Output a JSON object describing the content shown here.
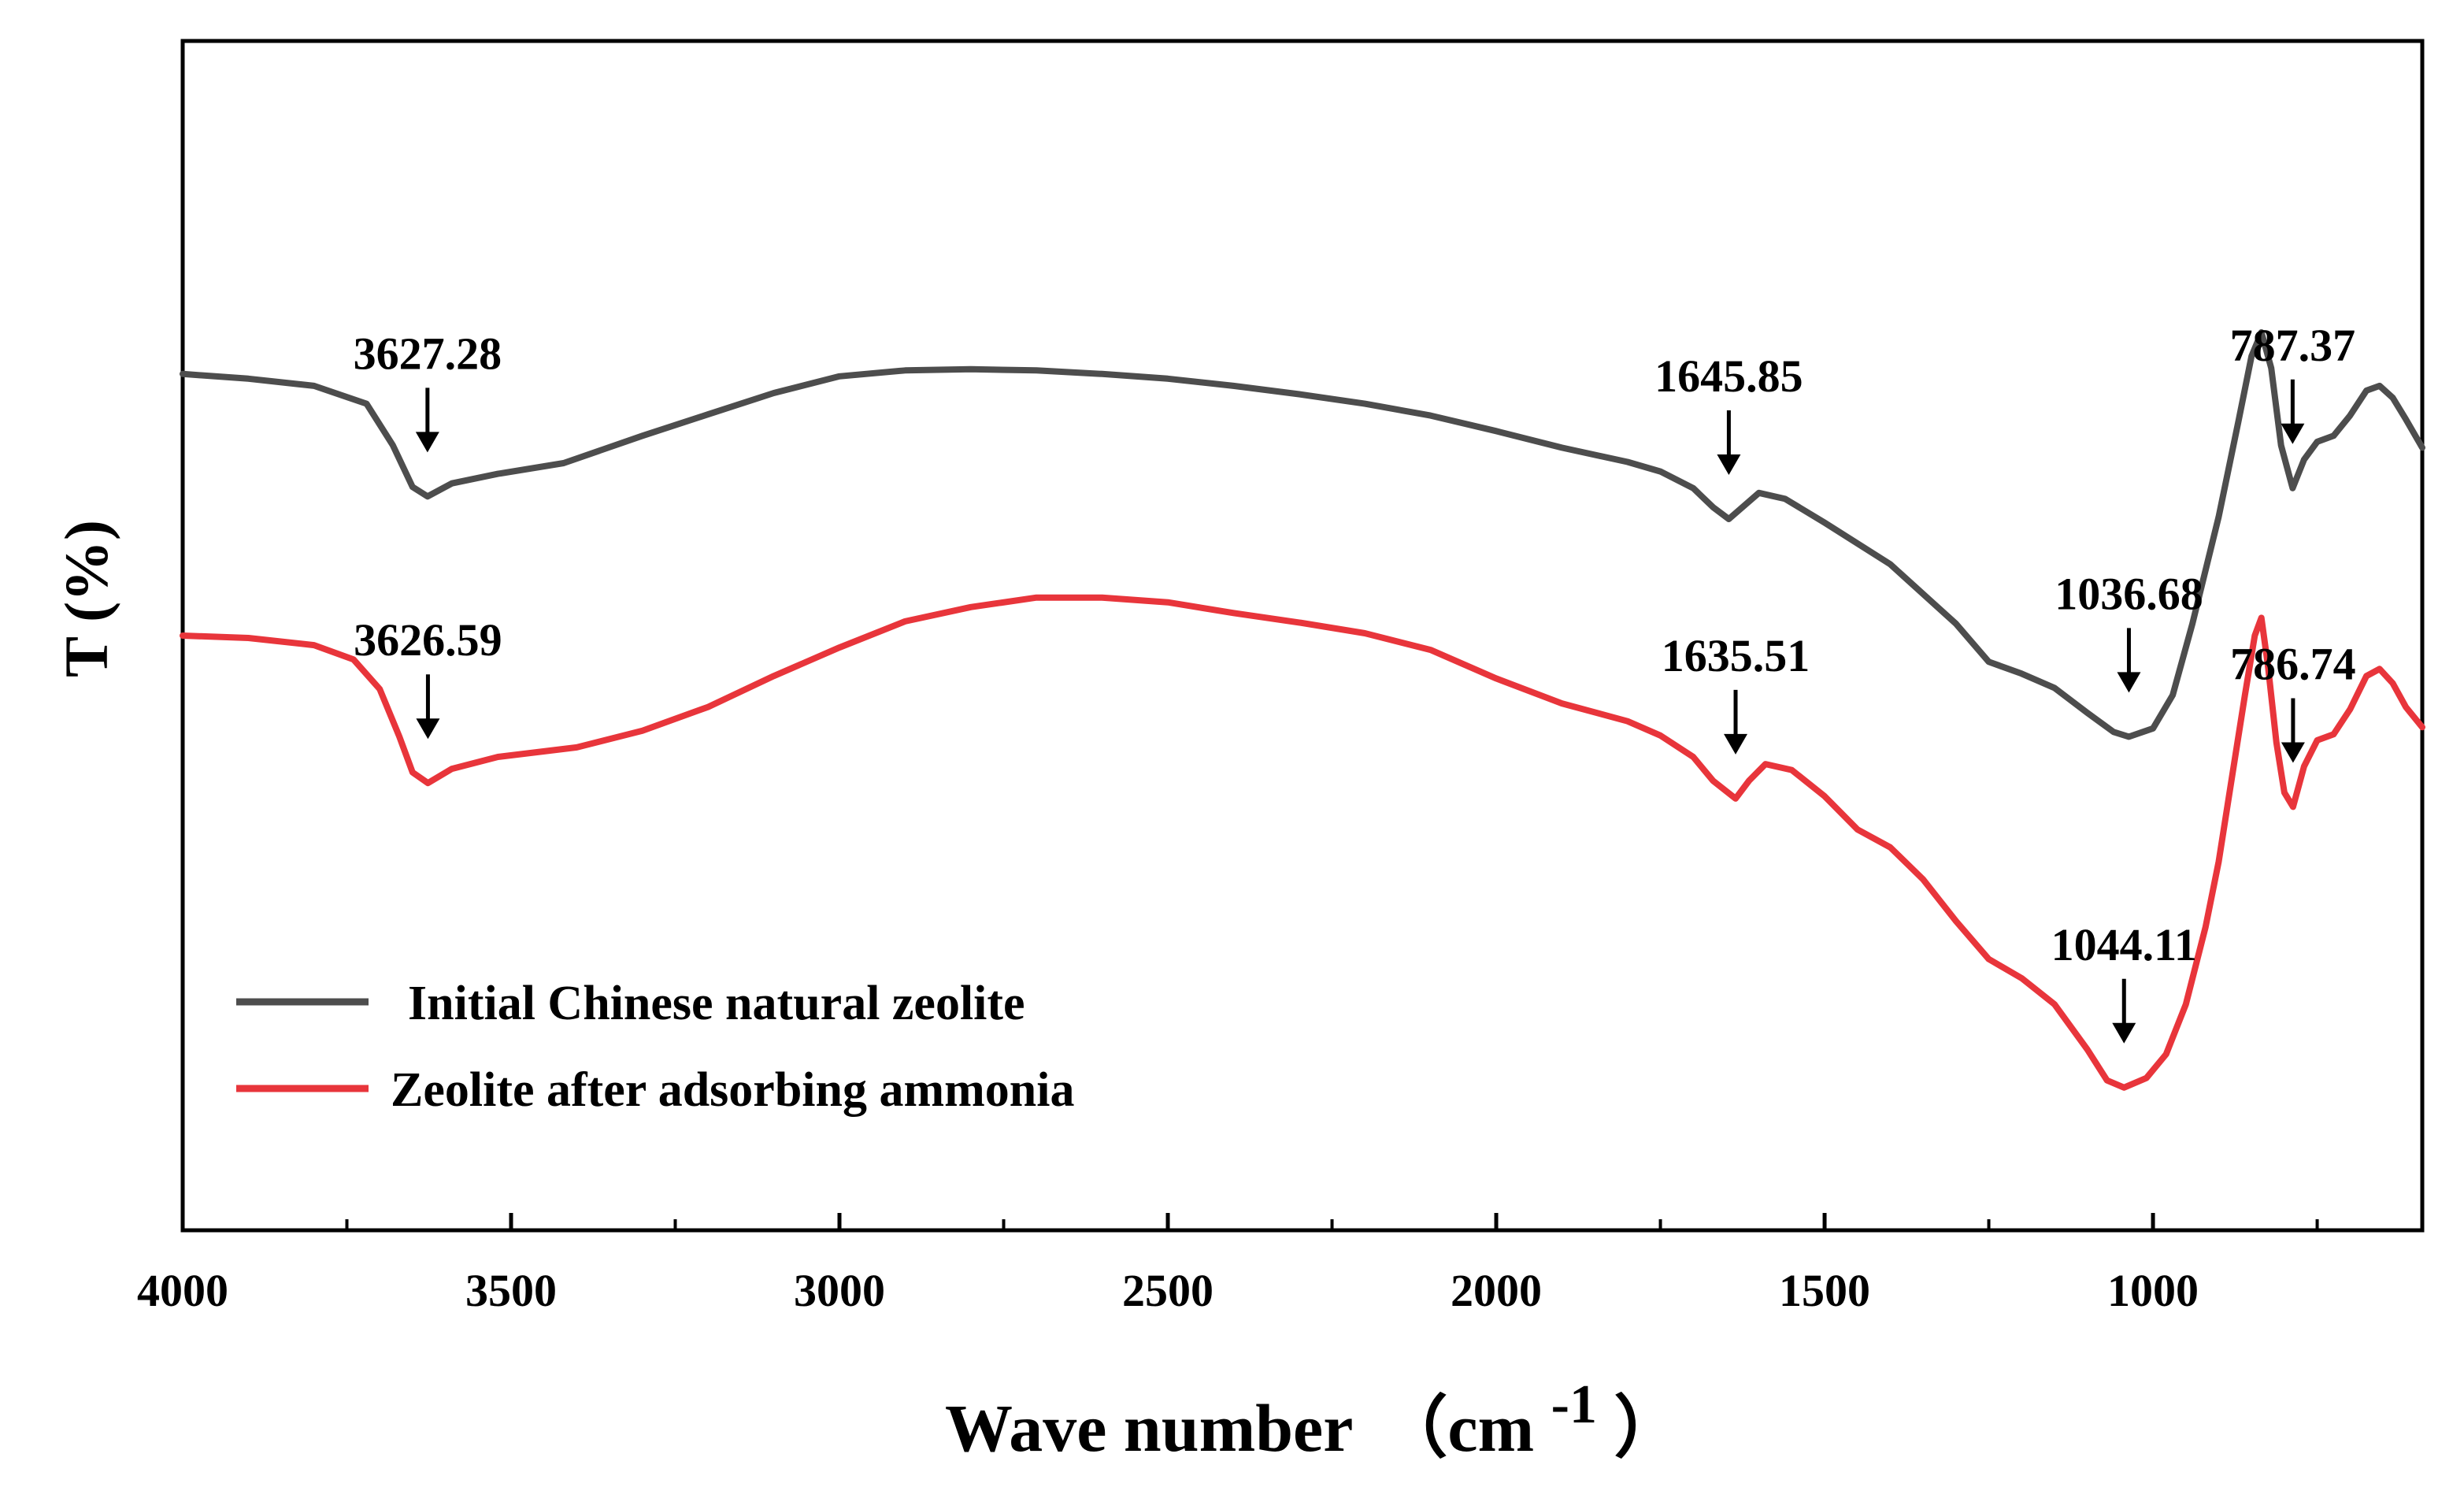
{
  "chart_data": {
    "type": "line",
    "title": "",
    "xlabel": "Wave number",
    "xlabel_unit_open": "（cm",
    "xlabel_unit_exp": "-1",
    "xlabel_unit_close": "）",
    "ylabel": "T (%)",
    "xlim": [
      4000,
      590
    ],
    "x_reversed": true,
    "xticks": [
      4000,
      3500,
      3000,
      2500,
      2000,
      1500,
      1000
    ],
    "xtick_labels": [
      "4000",
      "3500",
      "3000",
      "2500",
      "2000",
      "1500",
      "1000"
    ],
    "yticks_shown": false,
    "grid": false,
    "legend_position": "bottom-left",
    "colors": {
      "series1": "#4d4d4d",
      "series2": "#e8353b",
      "axis": "#000000"
    },
    "series": [
      {
        "name": "Initial Chinese natural zeolite",
        "points": [
          [
            4000,
            72.0
          ],
          [
            3900,
            71.6
          ],
          [
            3800,
            71.0
          ],
          [
            3720,
            69.5
          ],
          [
            3680,
            66.0
          ],
          [
            3650,
            62.5
          ],
          [
            3627.28,
            61.7
          ],
          [
            3590,
            62.8
          ],
          [
            3520,
            63.6
          ],
          [
            3420,
            64.5
          ],
          [
            3300,
            66.8
          ],
          [
            3200,
            68.6
          ],
          [
            3100,
            70.4
          ],
          [
            3000,
            71.8
          ],
          [
            2900,
            72.3
          ],
          [
            2800,
            72.4
          ],
          [
            2700,
            72.3
          ],
          [
            2600,
            72.0
          ],
          [
            2500,
            71.6
          ],
          [
            2400,
            71.0
          ],
          [
            2300,
            70.3
          ],
          [
            2200,
            69.5
          ],
          [
            2100,
            68.5
          ],
          [
            2000,
            67.2
          ],
          [
            1900,
            65.8
          ],
          [
            1800,
            64.6
          ],
          [
            1750,
            63.8
          ],
          [
            1700,
            62.4
          ],
          [
            1670,
            60.8
          ],
          [
            1645.85,
            59.8
          ],
          [
            1625,
            60.8
          ],
          [
            1600,
            62.0
          ],
          [
            1560,
            61.5
          ],
          [
            1500,
            59.5
          ],
          [
            1400,
            56.0
          ],
          [
            1300,
            51.0
          ],
          [
            1250,
            47.8
          ],
          [
            1200,
            46.8
          ],
          [
            1150,
            45.6
          ],
          [
            1100,
            43.5
          ],
          [
            1060,
            41.9
          ],
          [
            1036.68,
            41.5
          ],
          [
            1000,
            42.2
          ],
          [
            970,
            45.0
          ],
          [
            940,
            51.0
          ],
          [
            900,
            60.0
          ],
          [
            870,
            68.0
          ],
          [
            850,
            73.5
          ],
          [
            835,
            75.5
          ],
          [
            820,
            72.5
          ],
          [
            805,
            66.0
          ],
          [
            787.37,
            62.4
          ],
          [
            770,
            64.8
          ],
          [
            750,
            66.3
          ],
          [
            725,
            66.8
          ],
          [
            700,
            68.5
          ],
          [
            675,
            70.6
          ],
          [
            655,
            71.0
          ],
          [
            635,
            70.0
          ],
          [
            615,
            68.2
          ],
          [
            590,
            65.8
          ]
        ]
      },
      {
        "name": "Zeolite after adsorbing ammonia",
        "points": [
          [
            4000,
            50.0
          ],
          [
            3900,
            49.8
          ],
          [
            3800,
            49.2
          ],
          [
            3740,
            48.0
          ],
          [
            3700,
            45.5
          ],
          [
            3670,
            41.5
          ],
          [
            3650,
            38.5
          ],
          [
            3626.59,
            37.6
          ],
          [
            3590,
            38.8
          ],
          [
            3520,
            39.8
          ],
          [
            3400,
            40.6
          ],
          [
            3300,
            42.0
          ],
          [
            3200,
            44.0
          ],
          [
            3100,
            46.6
          ],
          [
            3000,
            49.0
          ],
          [
            2900,
            51.2
          ],
          [
            2800,
            52.4
          ],
          [
            2700,
            53.2
          ],
          [
            2600,
            53.2
          ],
          [
            2500,
            52.8
          ],
          [
            2400,
            51.9
          ],
          [
            2300,
            51.1
          ],
          [
            2200,
            50.2
          ],
          [
            2100,
            48.8
          ],
          [
            2000,
            46.4
          ],
          [
            1900,
            44.3
          ],
          [
            1800,
            42.8
          ],
          [
            1750,
            41.6
          ],
          [
            1700,
            39.8
          ],
          [
            1670,
            37.8
          ],
          [
            1635.51,
            36.3
          ],
          [
            1615,
            37.8
          ],
          [
            1590,
            39.2
          ],
          [
            1550,
            38.7
          ],
          [
            1500,
            36.5
          ],
          [
            1450,
            33.7
          ],
          [
            1400,
            32.2
          ],
          [
            1350,
            29.5
          ],
          [
            1300,
            26.0
          ],
          [
            1250,
            22.8
          ],
          [
            1200,
            21.2
          ],
          [
            1150,
            19.0
          ],
          [
            1100,
            15.2
          ],
          [
            1070,
            12.6
          ],
          [
            1044.11,
            12.0
          ],
          [
            1010,
            12.8
          ],
          [
            980,
            14.8
          ],
          [
            950,
            19.0
          ],
          [
            920,
            25.5
          ],
          [
            900,
            31.0
          ],
          [
            880,
            38.0
          ],
          [
            860,
            45.0
          ],
          [
            845,
            50.0
          ],
          [
            835,
            51.5
          ],
          [
            825,
            47.5
          ],
          [
            812,
            41.0
          ],
          [
            800,
            36.8
          ],
          [
            786.74,
            35.6
          ],
          [
            770,
            39.0
          ],
          [
            750,
            41.2
          ],
          [
            725,
            41.7
          ],
          [
            700,
            43.8
          ],
          [
            675,
            46.6
          ],
          [
            655,
            47.2
          ],
          [
            635,
            46.0
          ],
          [
            615,
            44.0
          ],
          [
            590,
            42.3
          ]
        ]
      }
    ],
    "annotations": [
      {
        "label": "3627.28",
        "x": 3627.28,
        "series": 0
      },
      {
        "label": "1645.85",
        "x": 1645.85,
        "series": 0
      },
      {
        "label": "1036.68",
        "x": 1036.68,
        "series": 0
      },
      {
        "label": "787.37",
        "x": 787.37,
        "series": 0
      },
      {
        "label": "3626.59",
        "x": 3626.59,
        "series": 1
      },
      {
        "label": "1635.51",
        "x": 1635.51,
        "series": 1
      },
      {
        "label": "1044.11",
        "x": 1044.11,
        "series": 1
      },
      {
        "label": "786.74",
        "x": 786.74,
        "series": 1
      }
    ]
  }
}
